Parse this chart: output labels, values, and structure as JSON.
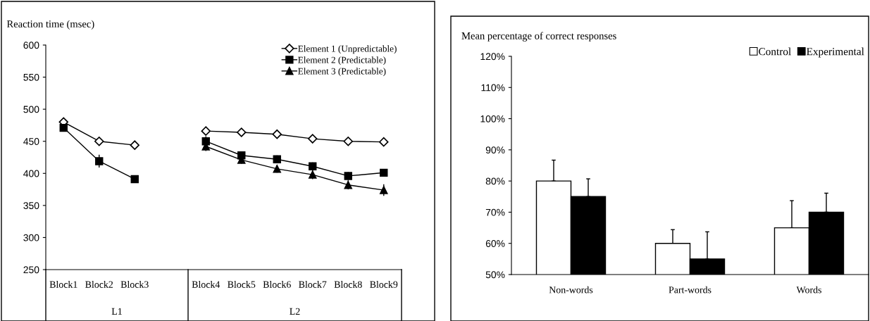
{
  "chart_data": [
    {
      "type": "line",
      "ylabel": "Reaction time (msec)",
      "categories": [
        "Block1",
        "Block2",
        "Block3",
        null,
        "Block4",
        "Block5",
        "Block6",
        "Block7",
        "Block8",
        "Block9"
      ],
      "series": [
        {
          "name": "Element 1 (Unpredictable)",
          "color": "#000000",
          "marker": "diamond",
          "values": [
            480,
            450,
            444,
            null,
            466,
            464,
            461,
            454,
            450,
            449
          ],
          "errors": [
            3,
            4,
            3,
            null,
            5,
            3,
            3,
            3,
            3,
            4
          ]
        },
        {
          "name": "Element 2 (Predictable)",
          "color": "#000000",
          "marker": "square",
          "values": [
            471,
            419,
            391,
            null,
            450,
            428,
            422,
            411,
            396,
            401
          ],
          "errors": [
            3,
            10,
            5,
            null,
            8,
            6,
            6,
            6,
            6,
            5
          ]
        },
        {
          "name": "Element 3 (Predictable)",
          "color": "#000000",
          "marker": "triangle",
          "values": [
            null,
            null,
            null,
            null,
            442,
            421,
            407,
            398,
            382,
            374
          ],
          "errors": [
            null,
            null,
            null,
            null,
            7,
            6,
            6,
            7,
            7,
            9
          ]
        }
      ],
      "annotations": [
        "L1",
        "L2"
      ],
      "ylim": [
        250,
        600
      ],
      "yticks": [
        250,
        300,
        350,
        400,
        450,
        500,
        550,
        600
      ],
      "legend": "top right",
      "line_style": "solid"
    },
    {
      "type": "bar",
      "ylabel": "Mean percentage of correct responses",
      "categories": [
        "Non-words",
        "Part-words",
        "Words"
      ],
      "series": [
        {
          "name": "Control",
          "color": "#ffffff",
          "values": [
            80,
            60,
            65
          ],
          "errors": [
            [
              80,
              86.7
            ],
            [
              60,
              64.4
            ],
            [
              65,
              73.7
            ]
          ]
        },
        {
          "name": "Experimental",
          "color": "#000000",
          "values": [
            75,
            55,
            70
          ],
          "errors": [
            [
              75,
              80.7
            ],
            [
              55,
              63.7
            ],
            [
              70,
              76.1
            ]
          ]
        }
      ],
      "ylim": [
        50,
        120
      ],
      "yticks": [
        {
          "value": 50,
          "label": "50%"
        },
        {
          "value": 60,
          "label": "60%"
        },
        {
          "value": 70,
          "label": "70%"
        },
        {
          "value": 80,
          "label": "80%"
        },
        {
          "value": 90,
          "label": "90%"
        },
        {
          "value": 100,
          "label": "100%"
        },
        {
          "value": 110,
          "label": "110%"
        },
        {
          "value": 120,
          "label": "120%"
        }
      ],
      "legend": "top right"
    }
  ]
}
